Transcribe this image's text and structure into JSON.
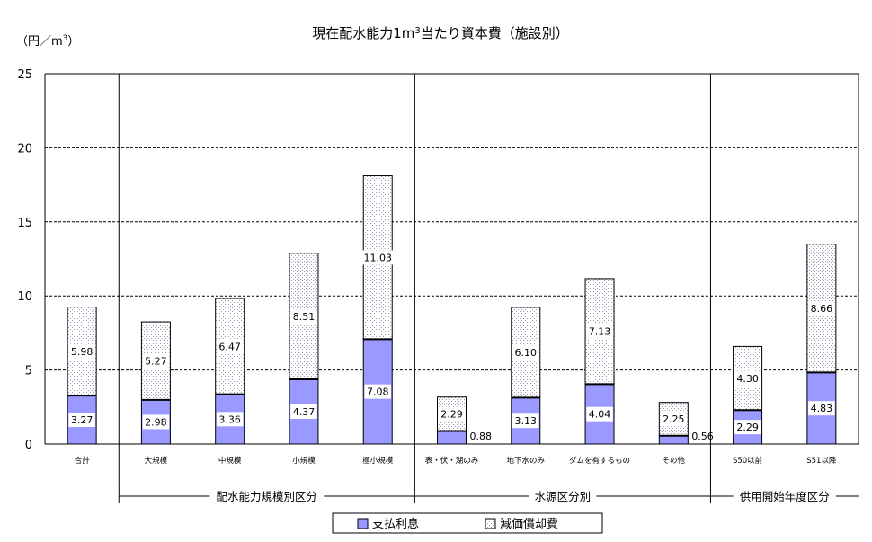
{
  "chart_data": {
    "type": "bar",
    "stacked": true,
    "title": "現在配水能力1m³当たり資本費（施設別）",
    "ylabel": "（円／m³）",
    "ylim": [
      0,
      25
    ],
    "yticks": [
      0,
      5,
      10,
      15,
      20,
      25
    ],
    "grid": true,
    "legend_position": "bottom",
    "categories": [
      "合計",
      "大規模",
      "中規模",
      "小規模",
      "極小規模",
      "表・伏・湖のみ",
      "地下水のみ",
      "ダムを有するもの",
      "その他",
      "S50以前",
      "S51以降"
    ],
    "groups": [
      {
        "label": "配水能力規模別区分",
        "categories": [
          1,
          2,
          3,
          4
        ]
      },
      {
        "label": "水源区分別",
        "categories": [
          5,
          6,
          7,
          8
        ]
      },
      {
        "label": "供用開始年度区分",
        "categories": [
          9,
          10
        ]
      }
    ],
    "series": [
      {
        "name": "支払利息",
        "color": "#9999ff",
        "values": [
          3.27,
          2.98,
          3.36,
          4.37,
          7.08,
          0.88,
          3.13,
          4.04,
          0.56,
          2.29,
          4.83
        ],
        "labels": [
          "3.27",
          "2.98",
          "3.36",
          "4.37",
          "7.08",
          "0.88",
          "3.13",
          "4.04",
          "0.56",
          "2.29",
          "4.83"
        ]
      },
      {
        "name": "減価償却費",
        "color": "#e8e8f8",
        "values": [
          5.98,
          5.27,
          6.47,
          8.51,
          11.03,
          2.29,
          6.1,
          7.13,
          2.25,
          4.3,
          8.66
        ],
        "labels": [
          "5.98",
          "5.27",
          "6.47",
          "8.51",
          "11.03",
          "2.29",
          "6.10",
          "7.13",
          "2.25",
          "4.30",
          "8.66"
        ]
      }
    ]
  }
}
